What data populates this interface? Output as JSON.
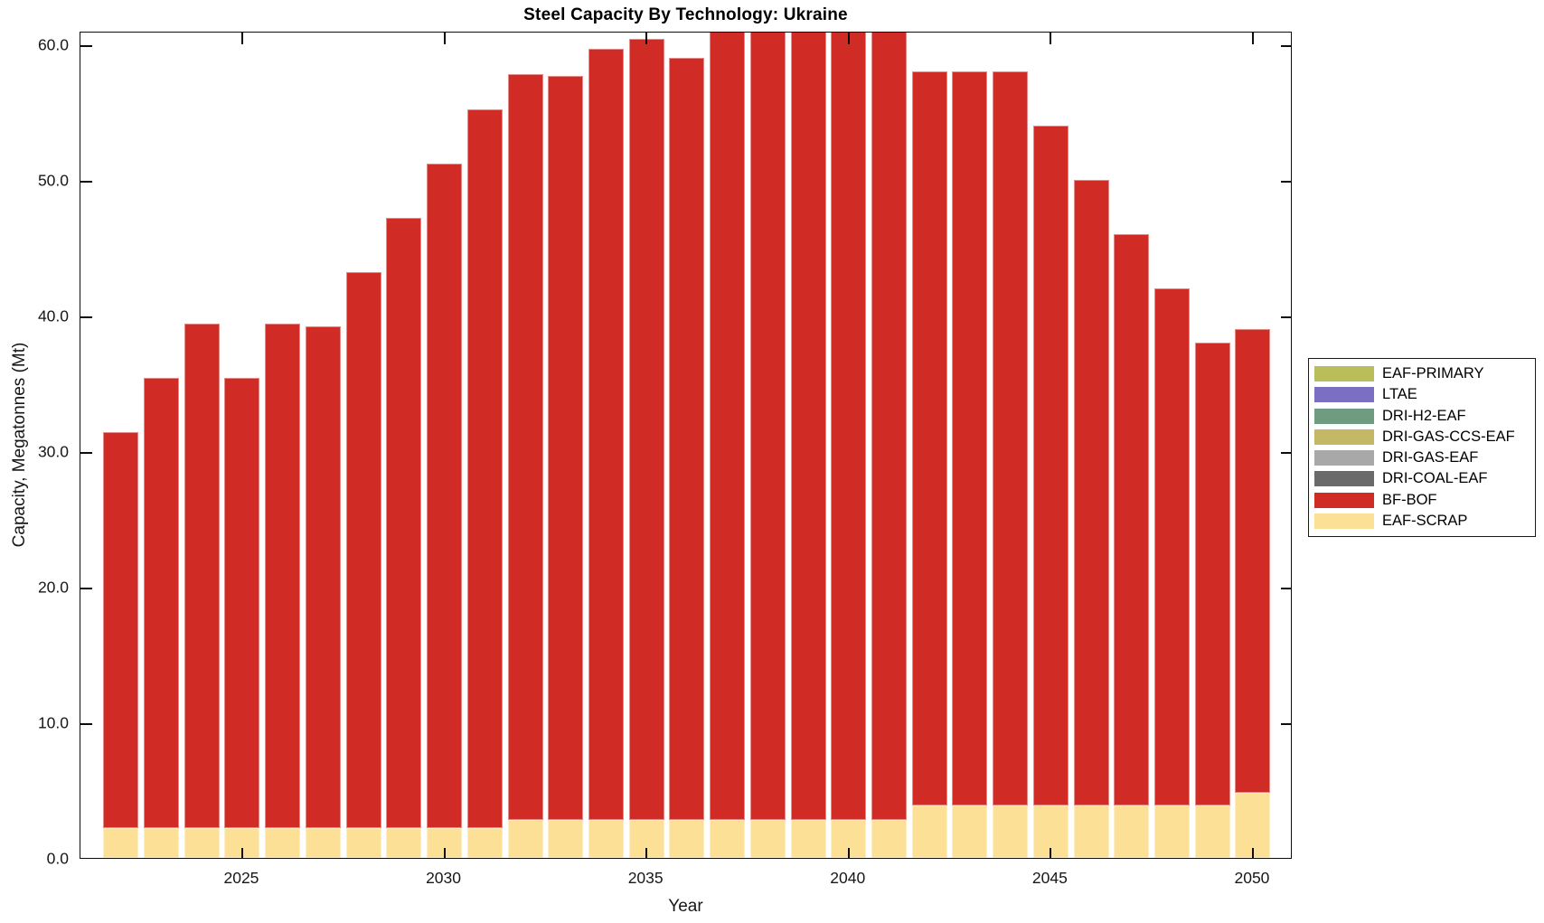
{
  "chart_data": {
    "type": "bar",
    "stacked": true,
    "title": "Steel Capacity By Technology: Ukraine",
    "xlabel": "Year",
    "ylabel": "Capacity, Megatonnes (Mt)",
    "ylim": [
      0,
      61
    ],
    "grid": false,
    "legend_position": "right-outside",
    "ytick_values": [
      0,
      10,
      20,
      30,
      40,
      50,
      60
    ],
    "ytick_labels": [
      "0.0",
      "10.0",
      "20.0",
      "30.0",
      "40.0",
      "50.0",
      "60.0"
    ],
    "xtick_years": [
      2025,
      2030,
      2035,
      2040,
      2045,
      2050
    ],
    "xtick_labels": [
      "2025",
      "2030",
      "2035",
      "2040",
      "2045",
      "2050"
    ],
    "x": [
      2022,
      2023,
      2024,
      2025,
      2026,
      2027,
      2028,
      2029,
      2030,
      2031,
      2032,
      2033,
      2034,
      2035,
      2036,
      2037,
      2038,
      2039,
      2040,
      2041,
      2042,
      2043,
      2044,
      2045,
      2046,
      2047,
      2048,
      2049,
      2050
    ],
    "series": [
      {
        "name": "EAF-SCRAP",
        "color": "#fbe096",
        "values": [
          2.2,
          2.2,
          2.2,
          2.2,
          2.2,
          2.2,
          2.2,
          2.2,
          2.2,
          2.2,
          2.8,
          2.8,
          2.8,
          2.8,
          2.8,
          2.8,
          2.8,
          2.8,
          2.8,
          2.8,
          3.9,
          3.9,
          3.9,
          3.9,
          3.9,
          3.9,
          3.9,
          3.9,
          4.8
        ]
      },
      {
        "name": "BF-BOF",
        "color": "#d02b24",
        "values": [
          29.2,
          33.2,
          37.2,
          33.2,
          37.2,
          37.0,
          41.0,
          45.0,
          49.0,
          53.0,
          55.0,
          54.9,
          56.9,
          57.6,
          56.2,
          58.4,
          58.4,
          58.4,
          58.4,
          58.4,
          54.1,
          54.1,
          54.1,
          50.1,
          46.1,
          42.1,
          38.1,
          34.1,
          34.2
        ]
      }
    ],
    "totals_estimated": [
      31.4,
      35.4,
      39.4,
      35.4,
      39.4,
      39.2,
      43.2,
      47.2,
      51.2,
      55.2,
      57.8,
      57.7,
      59.7,
      60.4,
      59.0,
      61.2,
      61.2,
      61.2,
      61.2,
      61.2,
      58.0,
      58.0,
      58.0,
      54.0,
      50.0,
      46.0,
      42.0,
      38.0,
      39.0
    ],
    "clipped_years": [
      2037,
      2038,
      2039,
      2040,
      2041
    ],
    "note": "Bars for 2037-2041 reach above the visible y-axis maximum and are clipped at the top of the plot box.",
    "legend": [
      {
        "label": "EAF-PRIMARY",
        "color": "#b9bd5a"
      },
      {
        "label": "LTAE",
        "color": "#7a6fc2"
      },
      {
        "label": "DRI-H2-EAF",
        "color": "#6f9c80"
      },
      {
        "label": "DRI-GAS-CCS-EAF",
        "color": "#c4b867"
      },
      {
        "label": "DRI-GAS-EAF",
        "color": "#a8a8a8"
      },
      {
        "label": "DRI-COAL-EAF",
        "color": "#6a6a6a"
      },
      {
        "label": "BF-BOF",
        "color": "#d02b24"
      },
      {
        "label": "EAF-SCRAP",
        "color": "#fbe096"
      }
    ]
  }
}
